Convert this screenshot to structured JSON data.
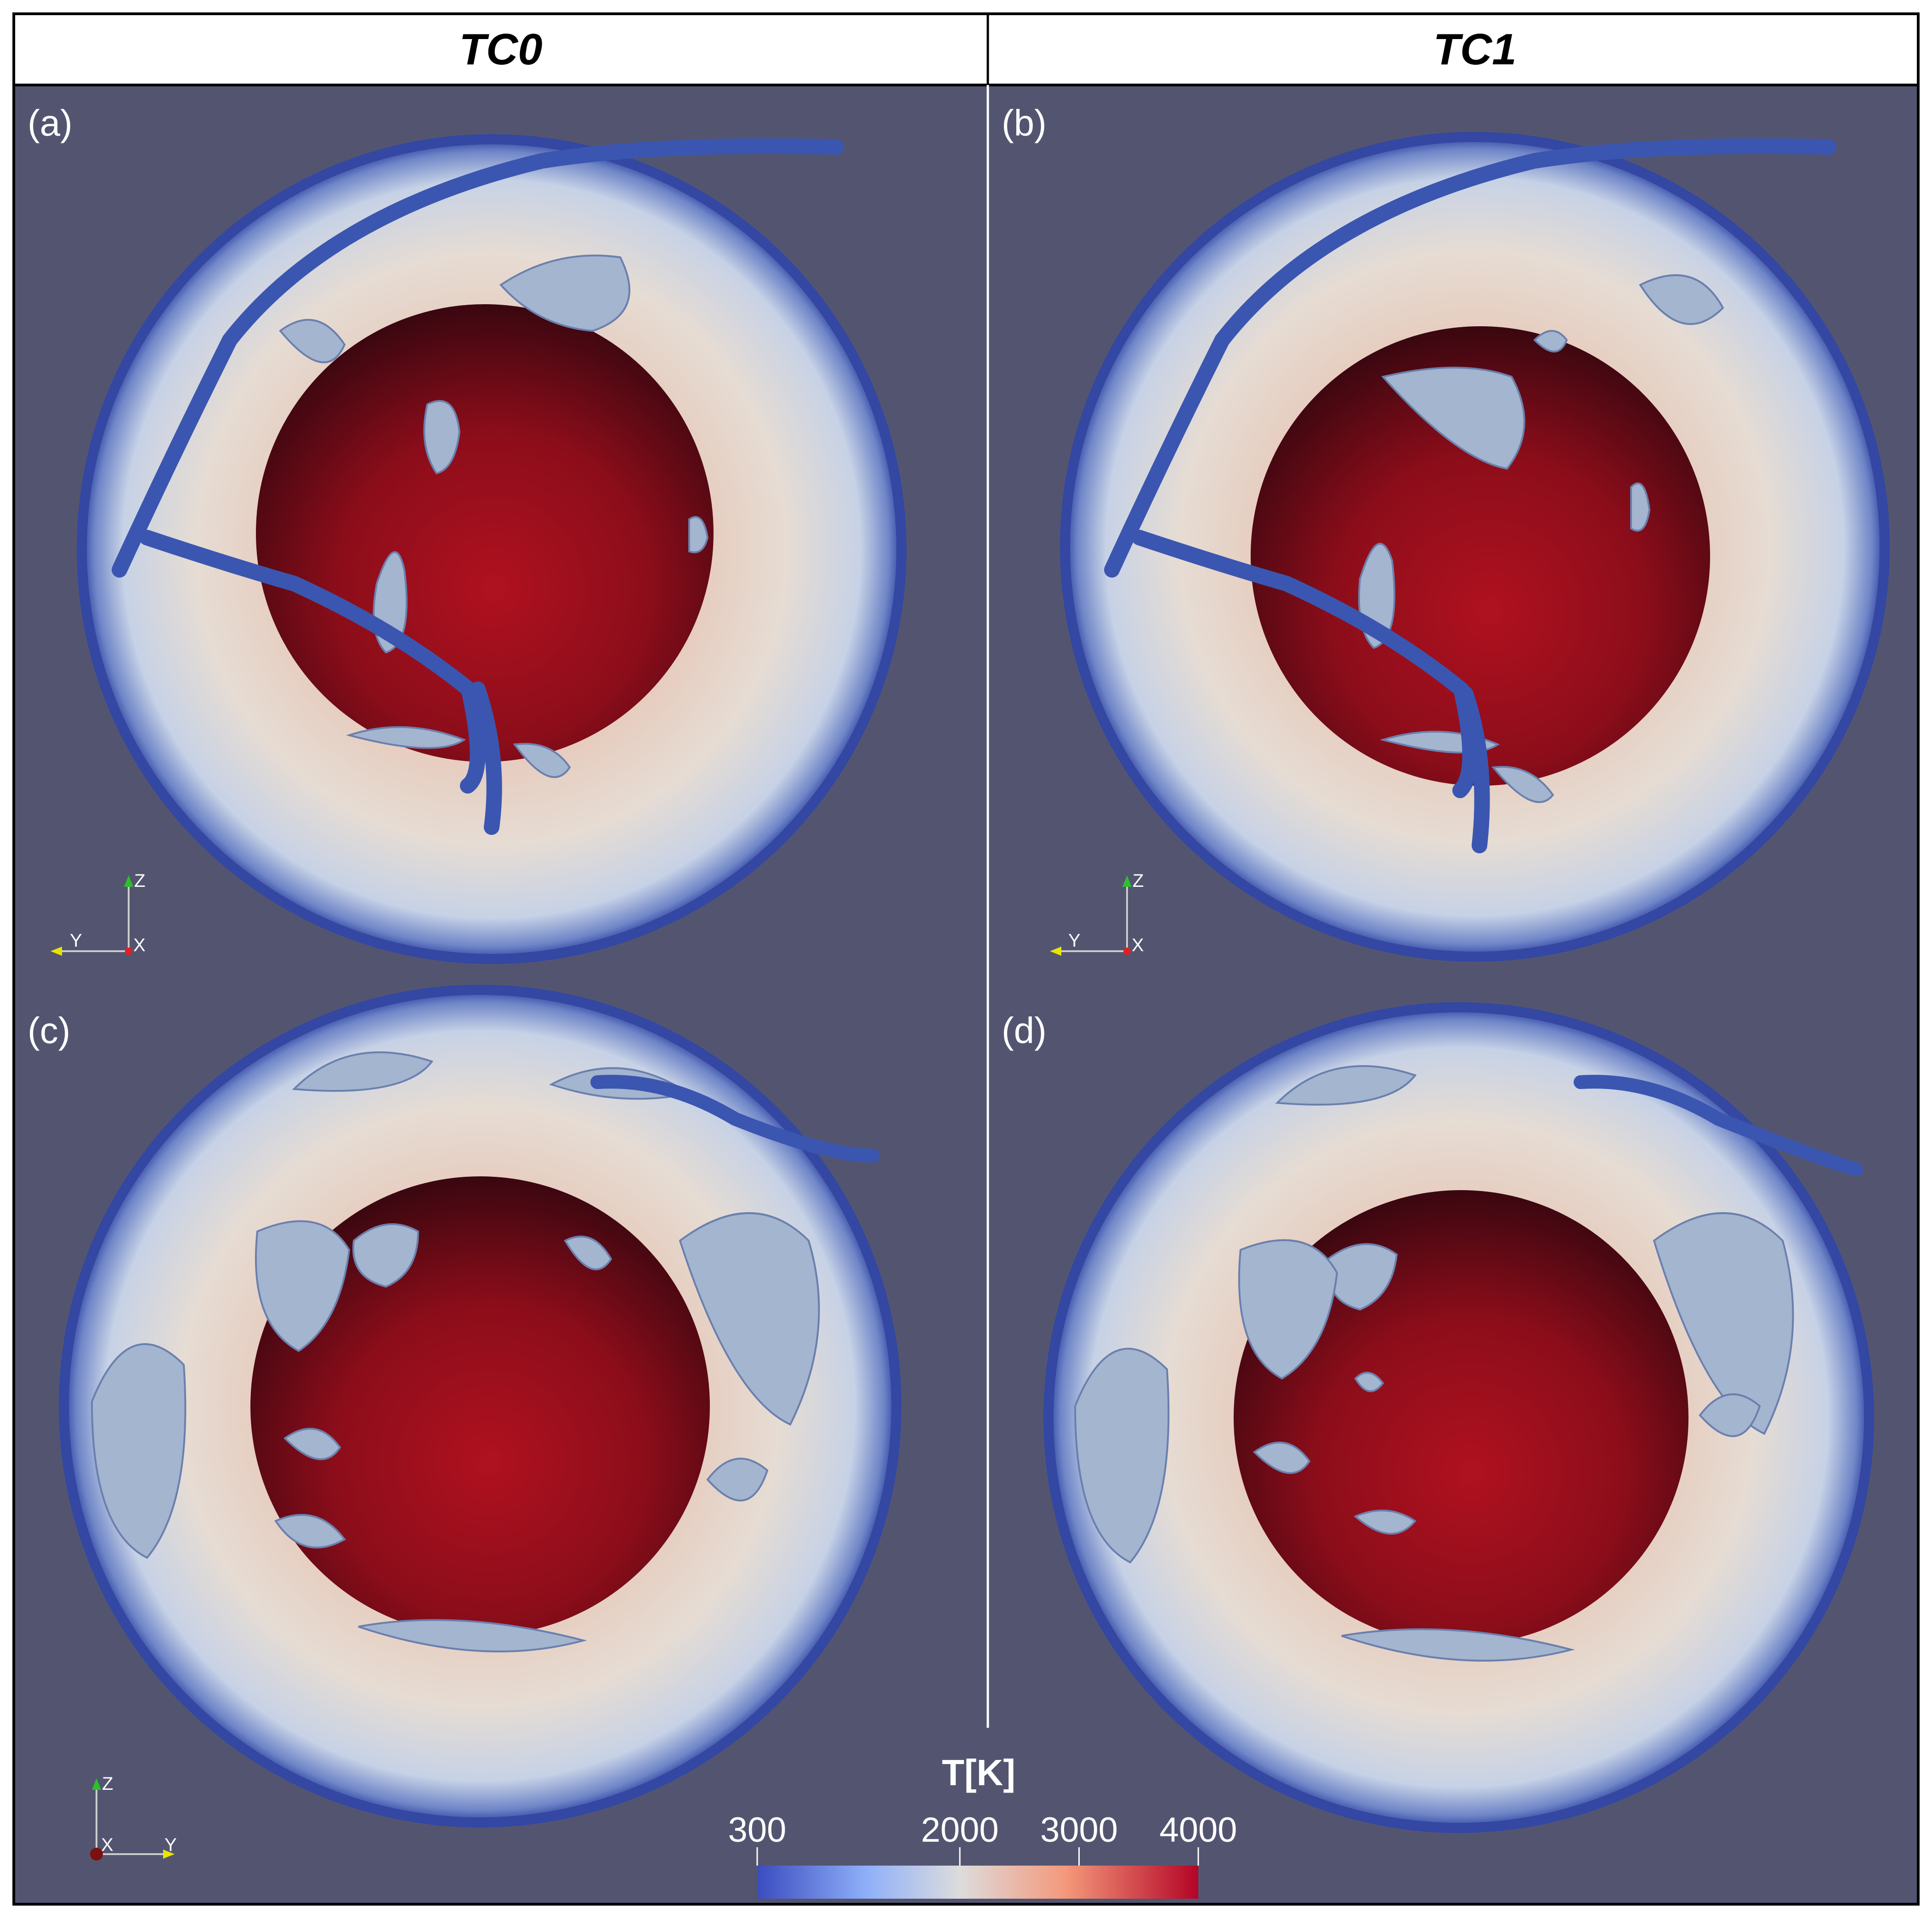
{
  "columns": [
    {
      "title": "TC0"
    },
    {
      "title": "TC1"
    }
  ],
  "panels": [
    {
      "label": "(a)",
      "axes": [
        "Z",
        "Y",
        "X"
      ]
    },
    {
      "label": "(b)",
      "axes": [
        "Z",
        "Y",
        "X"
      ]
    },
    {
      "label": "(c)",
      "axes": [
        "Z",
        "X",
        "Y"
      ]
    },
    {
      "label": "(d)"
    }
  ],
  "colorbar": {
    "title": "T[K]",
    "ticks": [
      "300",
      "2000",
      "3000",
      "4000"
    ],
    "tick_values": [
      300,
      2000,
      3000,
      4000
    ],
    "range": [
      300,
      4000
    ],
    "colors": [
      "#3b4cc0",
      "#aac7fd",
      "#dddddd",
      "#f7b89c",
      "#e7745b",
      "#b40426"
    ]
  },
  "colors": {
    "background": "#535570",
    "frame": "#000000",
    "header_bg": "#ffffff",
    "core": "#a0101f",
    "mantle": "#e3d6cc",
    "surface_shell": "#3a56b0",
    "slab": "#a3b5cf"
  }
}
